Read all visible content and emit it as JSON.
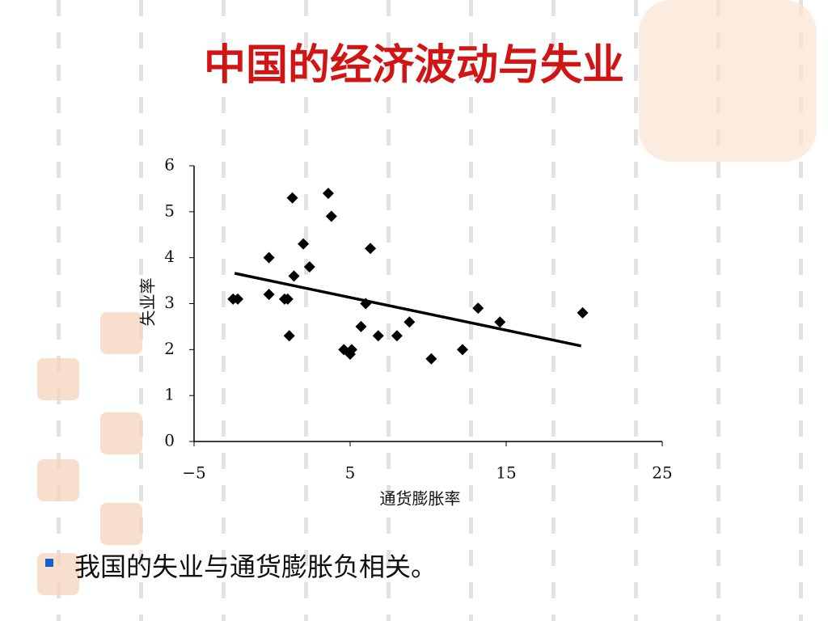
{
  "chart_data": {
    "type": "scatter",
    "title": "中国的经济波动与失业",
    "x_label": "通货膨胀率",
    "y_label": "失业率",
    "series": [
      {
        "name": "data",
        "color": "#000000",
        "x": [
          -2.5,
          -2.2,
          -0.2,
          -0.2,
          0.8,
          1.0,
          1.1,
          1.3,
          1.4,
          2.0,
          2.4,
          3.6,
          3.8,
          4.6,
          5.0,
          5.1,
          5.7,
          6.0,
          6.3,
          6.8,
          8.0,
          8.8,
          10.2,
          12.2,
          13.2,
          14.6,
          19.9
        ],
        "values": [
          3.1,
          3.1,
          4.0,
          3.2,
          3.1,
          3.1,
          2.3,
          5.3,
          3.6,
          4.3,
          3.8,
          5.4,
          4.9,
          2.0,
          1.9,
          2.0,
          2.5,
          3.0,
          4.2,
          2.3,
          2.3,
          2.6,
          1.8,
          2.0,
          2.9,
          2.6,
          2.8
        ]
      }
    ],
    "trendline": {
      "color": "#000000",
      "x": [
        -2.4,
        19.8
      ],
      "values": [
        3.66,
        2.08
      ]
    },
    "xlim": [
      -5,
      25
    ],
    "xticks": [
      {
        "value": -5,
        "label": "−5"
      },
      5,
      15,
      25
    ],
    "ylim": [
      0,
      6
    ],
    "yticks": [
      0,
      1,
      2,
      3,
      4,
      5,
      6
    ]
  },
  "bullet": "我国的失业与通货膨胀负相关。"
}
